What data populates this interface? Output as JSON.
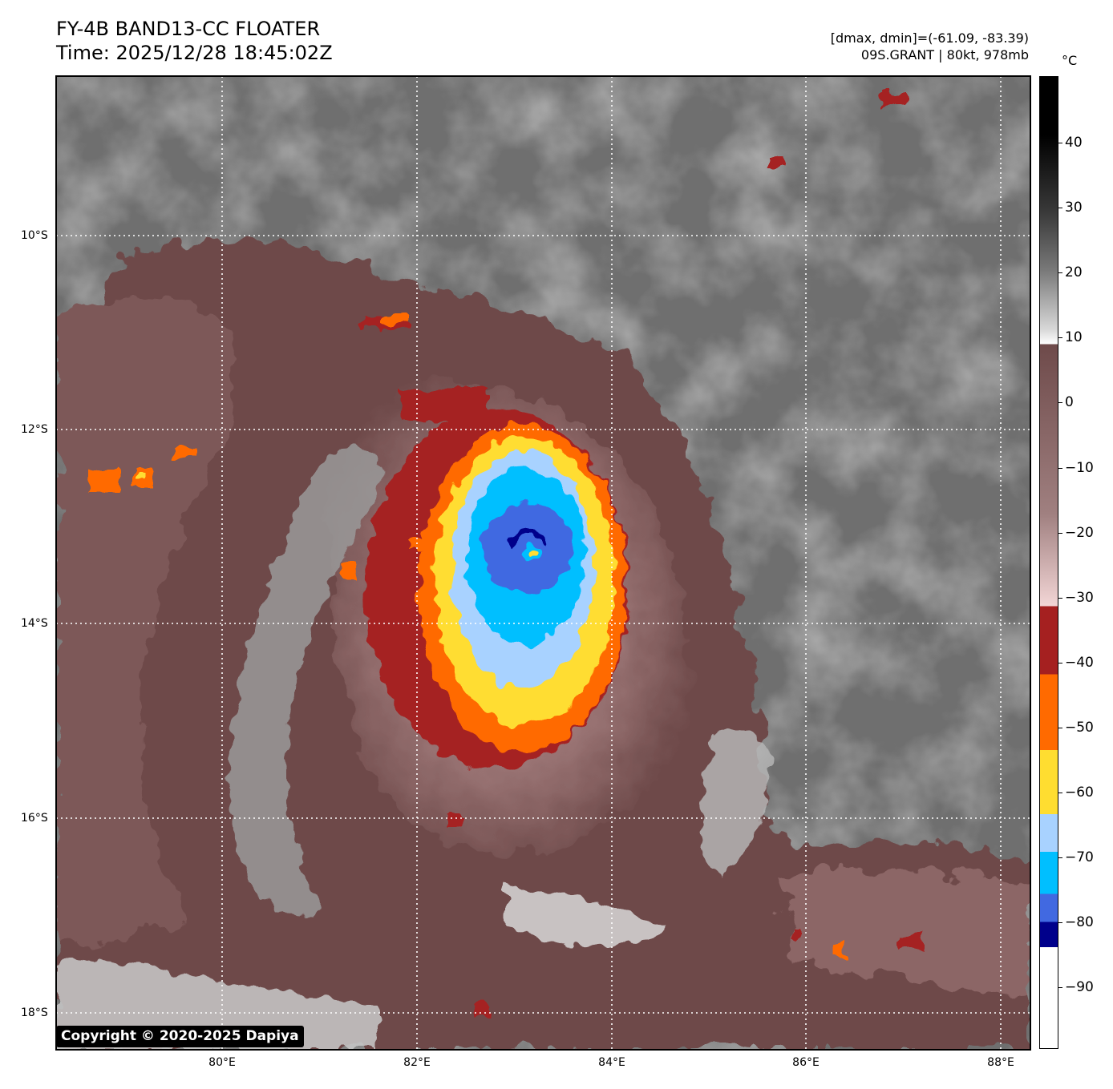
{
  "header": {
    "title_line1": "FY-4B BAND13-CC FLOATER",
    "title_line2": "Time: 2025/12/28 18:45:02Z",
    "dmax_dmin": "[dmax, dmin]=(-61.09, -83.39)",
    "storm_info": "09S.GRANT | 80kt, 978mb"
  },
  "map": {
    "lat_labels": [
      "10°S",
      "12°S",
      "14°S",
      "16°S",
      "18°S"
    ],
    "lon_labels": [
      "80°E",
      "82°E",
      "84°E",
      "86°E",
      "88°E"
    ],
    "gridlines": "dotted white",
    "storm_center": {
      "lon": 83.2,
      "lat": -13.4
    }
  },
  "colorbar": {
    "unit": "°C",
    "tick_labels": [
      "40",
      "30",
      "20",
      "10",
      "0",
      "−10",
      "−20",
      "−30",
      "−40",
      "−50",
      "−60",
      "−70",
      "−80",
      "−90"
    ],
    "colors": {
      "hot": "#000000",
      "gray": "#7a7a7a",
      "white": "#ffffff",
      "brown": "#6e4a4a",
      "pink": "#f3d6d6",
      "dark_red": "#a52020",
      "orange": "#ff6a00",
      "yellow": "#ffdd30",
      "light_blue": "#a8d2ff",
      "cyan": "#00bfff",
      "royal_blue": "#4169e1",
      "navy": "#00008b"
    }
  },
  "footer": {
    "copyright": "Copyright © 2020-2025 Dapiya"
  }
}
